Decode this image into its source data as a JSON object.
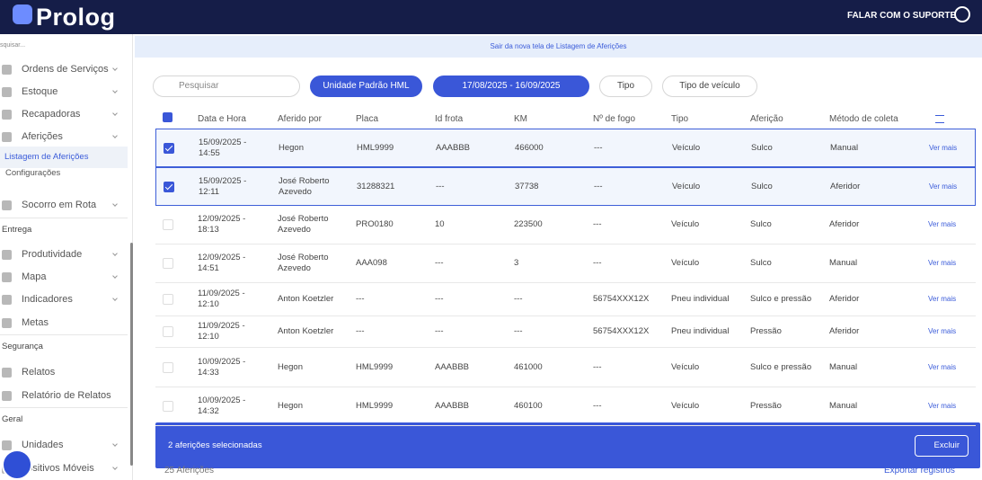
{
  "header": {
    "logo": "Prolog",
    "support": "FALAR COM O SUPORTE"
  },
  "sidebar": {
    "search": "squisar...",
    "items": [
      {
        "label": "Ordens de Serviços",
        "kind": "menu",
        "arrow": true
      },
      {
        "label": "Estoque",
        "kind": "menu",
        "arrow": true
      },
      {
        "label": "Recapadoras",
        "kind": "menu",
        "arrow": true
      },
      {
        "label": "Aferições",
        "kind": "menu",
        "arrow": true
      },
      {
        "label": "Listagem de Aferições",
        "kind": "active"
      },
      {
        "label": "Configurações",
        "kind": "sub"
      },
      {
        "label": "Socorro em Rota",
        "kind": "menu",
        "arrow": true
      },
      {
        "label": "Entrega",
        "kind": "section"
      },
      {
        "label": "Produtividade",
        "kind": "menu",
        "arrow": true
      },
      {
        "label": "Mapa",
        "kind": "menu",
        "arrow": true
      },
      {
        "label": "Indicadores",
        "kind": "menu",
        "arrow": true
      },
      {
        "label": "Metas",
        "kind": "menu"
      },
      {
        "label": "Segurança",
        "kind": "section"
      },
      {
        "label": "Relatos",
        "kind": "menu"
      },
      {
        "label": "Relatório de Relatos",
        "kind": "menu"
      },
      {
        "label": "Geral",
        "kind": "section"
      },
      {
        "label": "Unidades",
        "kind": "menu",
        "arrow": true
      },
      {
        "label": "positivos Móveis",
        "kind": "menu",
        "arrow": true
      }
    ]
  },
  "banner": "Sair da nova tela de Listagem de Aferições",
  "filters": {
    "search": "Pesquisar",
    "unit": "Unidade Padrão HML",
    "dates": "17/08/2025 - 16/09/2025",
    "type": "Tipo",
    "vehicle_type": "Tipo de veículo"
  },
  "table": {
    "columns": [
      "Data e Hora",
      "Aferido por",
      "Placa",
      "Id frota",
      "KM",
      "Nº de fogo",
      "Tipo",
      "Aferição",
      "Método de coleta"
    ],
    "rows": [
      {
        "selected": true,
        "cells": [
          "15/09/2025 - 14:55",
          "Hegon",
          "HML9999",
          "AAABBB",
          "466000",
          "---",
          "Veículo",
          "Sulco",
          "Manual",
          "Ver mais"
        ]
      },
      {
        "selected": true,
        "cells": [
          "15/09/2025 - 12:11",
          "José Roberto Azevedo",
          "31288321",
          "---",
          "37738",
          "---",
          "Veículo",
          "Sulco",
          "Aferidor",
          "Ver mais"
        ]
      },
      {
        "selected": false,
        "cells": [
          "12/09/2025 - 18:13",
          "José Roberto Azevedo",
          "PRO0180",
          "10",
          "223500",
          "---",
          "Veículo",
          "Sulco",
          "Aferidor",
          "Ver mais"
        ]
      },
      {
        "selected": false,
        "cells": [
          "12/09/2025 - 14:51",
          "José Roberto Azevedo",
          "AAA098",
          "---",
          "3",
          "---",
          "Veículo",
          "Sulco",
          "Manual",
          "Ver mais"
        ]
      },
      {
        "selected": false,
        "cells": [
          "11/09/2025 - 12:10",
          "Anton Koetzler",
          "---",
          "---",
          "---",
          "56754XXX12X",
          "Pneu individual",
          "Sulco e pressão",
          "Aferidor",
          "Ver mais"
        ]
      },
      {
        "selected": false,
        "cells": [
          "11/09/2025 - 12:10",
          "Anton Koetzler",
          "---",
          "---",
          "---",
          "56754XXX12X",
          "Pneu individual",
          "Pressão",
          "Aferidor",
          "Ver mais"
        ]
      },
      {
        "selected": false,
        "cells": [
          "10/09/2025 - 14:33",
          "Hegon",
          "HML9999",
          "AAABBB",
          "461000",
          "---",
          "Veículo",
          "Sulco e pressão",
          "Manual",
          "Ver mais"
        ]
      },
      {
        "selected": false,
        "cells": [
          "10/09/2025 - 14:32",
          "Hegon",
          "HML9999",
          "AAABBB",
          "460100",
          "---",
          "Veículo",
          "Pressão",
          "Manual",
          "Ver mais"
        ]
      }
    ]
  },
  "selection_bar": {
    "text": "2 aferições selecionadas",
    "button": "Excluir"
  },
  "footer": {
    "count": "25 Aferições",
    "export": "Exportar registros"
  }
}
